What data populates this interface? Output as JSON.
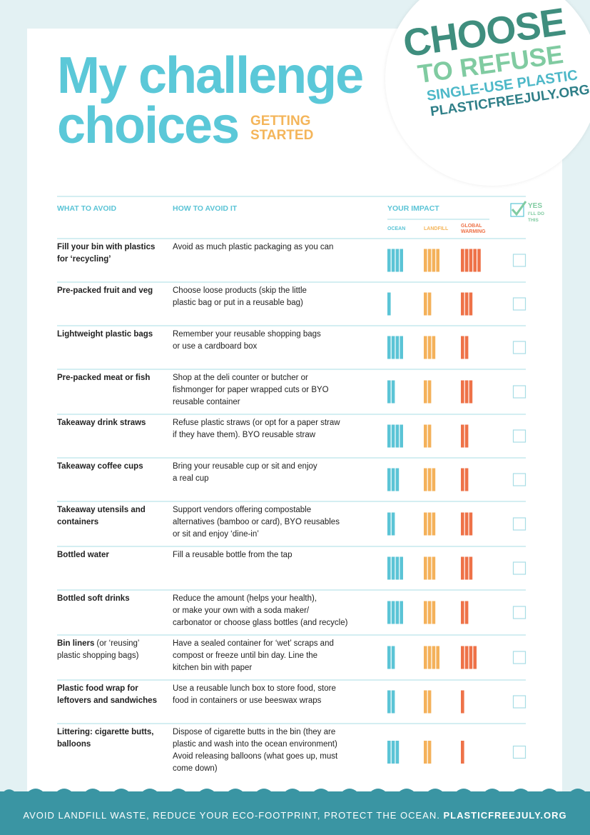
{
  "header": {
    "title_line1": "My challenge",
    "title_line2": "choices",
    "subtitle_line1": "GETTING",
    "subtitle_line2": "STARTED"
  },
  "logo": {
    "line1": "CHOOSE",
    "line2": "TO REFUSE",
    "line3": "SINGLE-USE PLASTIC",
    "line4": "PLASTICFREEJULY.ORG"
  },
  "table": {
    "columns": {
      "what": "WHAT TO AVOID",
      "how": "HOW TO AVOID IT",
      "impact": "YOUR IMPACT",
      "ocean": "OCEAN",
      "landfill": "LANDFILL",
      "warming_line1": "GLOBAL",
      "warming_line2": "WARMING",
      "yes": "YES",
      "yes_note_line1": "I’LL DO",
      "yes_note_line2": "THIS"
    },
    "rows": [
      {
        "what": [
          "Fill your bin with plastics",
          "for ‘recycling’"
        ],
        "how": [
          "Avoid as much plastic packaging as you can"
        ],
        "ocean": 4,
        "landfill": 4,
        "warming": 5
      },
      {
        "what": [
          "Pre-packed fruit and veg"
        ],
        "how": [
          "Choose loose products (skip the little",
          "plastic bag or put in a reusable bag)"
        ],
        "ocean": 1,
        "landfill": 2,
        "warming": 3
      },
      {
        "what": [
          "Lightweight plastic bags"
        ],
        "how": [
          "Remember your reusable shopping bags",
          "or use a cardboard box"
        ],
        "ocean": 4,
        "landfill": 3,
        "warming": 2
      },
      {
        "what": [
          "Pre-packed meat or fish"
        ],
        "how": [
          "Shop at the deli counter or butcher or",
          "fishmonger  for paper wrapped cuts or BYO",
          "reusable container"
        ],
        "ocean": 2,
        "landfill": 2,
        "warming": 3
      },
      {
        "what": [
          "Takeaway drink straws"
        ],
        "how": [
          "Refuse plastic straws (or opt for a paper straw",
          "if they have them). BYO reusable straw"
        ],
        "ocean": 4,
        "landfill": 2,
        "warming": 2
      },
      {
        "what": [
          "Takeaway coffee cups"
        ],
        "how": [
          "Bring your reusable cup or sit and enjoy",
          "a real cup"
        ],
        "ocean": 3,
        "landfill": 3,
        "warming": 2
      },
      {
        "what": [
          "Takeaway utensils and",
          "containers"
        ],
        "how": [
          "Support vendors offering compostable",
          "alternatives (bamboo or card), BYO reusables",
          "or sit and enjoy ‘dine-in’"
        ],
        "ocean": 2,
        "landfill": 3,
        "warming": 3
      },
      {
        "what": [
          "Bottled water"
        ],
        "how": [
          "Fill a reusable bottle from the tap"
        ],
        "ocean": 4,
        "landfill": 3,
        "warming": 3
      },
      {
        "what": [
          "Bottled soft drinks"
        ],
        "how": [
          "Reduce the amount (helps your health),",
          "or make your own with a soda maker/",
          "carbonator or choose glass bottles (and recycle)"
        ],
        "ocean": 4,
        "landfill": 3,
        "warming": 2
      },
      {
        "what": [
          "Bin liners"
        ],
        "what_note": [
          "(or ‘reusing’",
          "plastic shopping bags)"
        ],
        "how": [
          "Have a sealed container for ‘wet’ scraps and",
          "compost or freeze until bin day. Line the",
          "kitchen bin with paper"
        ],
        "ocean": 2,
        "landfill": 4,
        "warming": 4
      },
      {
        "what": [
          "Plastic food wrap for",
          "leftovers and sandwiches"
        ],
        "how": [
          "Use a reusable lunch box to store food, store",
          "food in containers or use beeswax wraps"
        ],
        "ocean": 2,
        "landfill": 2,
        "warming": 1
      },
      {
        "what": [
          "Littering: cigarette butts,",
          "balloons"
        ],
        "how": [
          "Dispose of cigarette butts in the bin (they are",
          "plastic and wash into the ocean environment)",
          "Avoid releasing balloons (what goes up, must",
          "come down)"
        ],
        "ocean": 3,
        "landfill": 2,
        "warming": 1
      }
    ]
  },
  "footer": {
    "text": "AVOID LANDFILL WASTE, REDUCE YOUR ECO-FOOTPRINT, PROTECT THE OCEAN.",
    "link": "PLASTICFREEJULY.ORG"
  }
}
